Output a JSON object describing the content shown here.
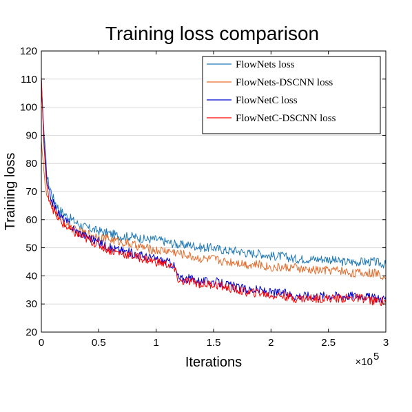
{
  "chart_data": {
    "type": "line",
    "title": "Training loss comparison",
    "xlabel": "Iterations",
    "ylabel": "Training loss",
    "x_multiplier_label": "×10",
    "x_multiplier_exponent": "5",
    "xlim": [
      0,
      3
    ],
    "ylim": [
      20,
      120
    ],
    "x_ticks": [
      0,
      0.5,
      1,
      1.5,
      2,
      2.5,
      3
    ],
    "x_tick_labels": [
      "0",
      "0.5",
      "1",
      "1.5",
      "2",
      "2.5",
      "3"
    ],
    "y_ticks": [
      20,
      30,
      40,
      50,
      60,
      70,
      80,
      90,
      100,
      110,
      120
    ],
    "y_tick_labels": [
      "20",
      "30",
      "40",
      "50",
      "60",
      "70",
      "80",
      "90",
      "100",
      "110",
      "120"
    ],
    "grid": "horizontal",
    "legend_position": "top-right",
    "series": [
      {
        "name": "FlowNets loss",
        "color": "#1f78b4",
        "x": [
          0,
          0.02,
          0.05,
          0.1,
          0.15,
          0.2,
          0.3,
          0.4,
          0.5,
          0.6,
          0.7,
          0.8,
          0.9,
          1.0,
          1.1,
          1.2,
          1.3,
          1.4,
          1.5,
          1.6,
          1.7,
          1.8,
          1.9,
          2.0,
          2.1,
          2.2,
          2.3,
          2.4,
          2.5,
          2.6,
          2.7,
          2.8,
          2.9,
          3.0
        ],
        "y": [
          108,
          93,
          75,
          68,
          64,
          62,
          59,
          57,
          56,
          55,
          54,
          54,
          53,
          53,
          52,
          51,
          51,
          50,
          50,
          49,
          49,
          48,
          48,
          47,
          47,
          46,
          46,
          46,
          46,
          45,
          45,
          45,
          45,
          44
        ]
      },
      {
        "name": "FlowNets-DSCNN loss",
        "color": "#e36c2c",
        "x": [
          0,
          0.02,
          0.05,
          0.1,
          0.15,
          0.2,
          0.3,
          0.4,
          0.5,
          0.6,
          0.7,
          0.8,
          0.9,
          1.0,
          1.1,
          1.2,
          1.3,
          1.4,
          1.5,
          1.6,
          1.7,
          1.8,
          1.9,
          2.0,
          2.1,
          2.2,
          2.3,
          2.4,
          2.5,
          2.6,
          2.7,
          2.8,
          2.9,
          3.0
        ],
        "y": [
          88,
          78,
          68,
          64,
          61,
          59,
          56,
          55,
          54,
          53,
          52,
          51,
          50,
          49,
          49,
          48,
          47,
          46,
          46,
          45,
          45,
          44,
          44,
          43,
          43,
          43,
          42,
          42,
          42,
          42,
          41,
          41,
          41,
          40
        ]
      },
      {
        "name": "FlowNetC loss",
        "color": "#0000d0",
        "x": [
          0,
          0.02,
          0.05,
          0.1,
          0.15,
          0.2,
          0.3,
          0.4,
          0.5,
          0.6,
          0.7,
          0.8,
          0.9,
          1.0,
          1.1,
          1.15,
          1.2,
          1.3,
          1.4,
          1.5,
          1.6,
          1.7,
          1.8,
          1.9,
          2.0,
          2.1,
          2.2,
          2.3,
          2.4,
          2.5,
          2.6,
          2.7,
          2.8,
          2.9,
          3.0
        ],
        "y": [
          110,
          90,
          72,
          66,
          62,
          60,
          56,
          54,
          52,
          50,
          49,
          48,
          47,
          46,
          45,
          44,
          39,
          39,
          38,
          38,
          37,
          36,
          35,
          35,
          34,
          34,
          33,
          33,
          33,
          33,
          33,
          33,
          33,
          32,
          32
        ]
      },
      {
        "name": "FlowNetC-DSCNN loss",
        "color": "#ff0000",
        "x": [
          0,
          0.02,
          0.05,
          0.1,
          0.15,
          0.2,
          0.3,
          0.4,
          0.5,
          0.6,
          0.7,
          0.8,
          0.9,
          1.0,
          1.1,
          1.15,
          1.2,
          1.3,
          1.4,
          1.5,
          1.6,
          1.7,
          1.8,
          1.9,
          2.0,
          2.1,
          2.2,
          2.3,
          2.4,
          2.5,
          2.6,
          2.7,
          2.8,
          2.9,
          3.0
        ],
        "y": [
          111,
          88,
          70,
          64,
          60,
          58,
          55,
          53,
          51,
          49,
          48,
          47,
          46,
          45,
          44,
          43,
          38,
          38,
          37,
          37,
          36,
          35,
          34,
          34,
          33,
          33,
          32,
          32,
          32,
          32,
          32,
          32,
          32,
          31,
          31
        ]
      }
    ]
  }
}
